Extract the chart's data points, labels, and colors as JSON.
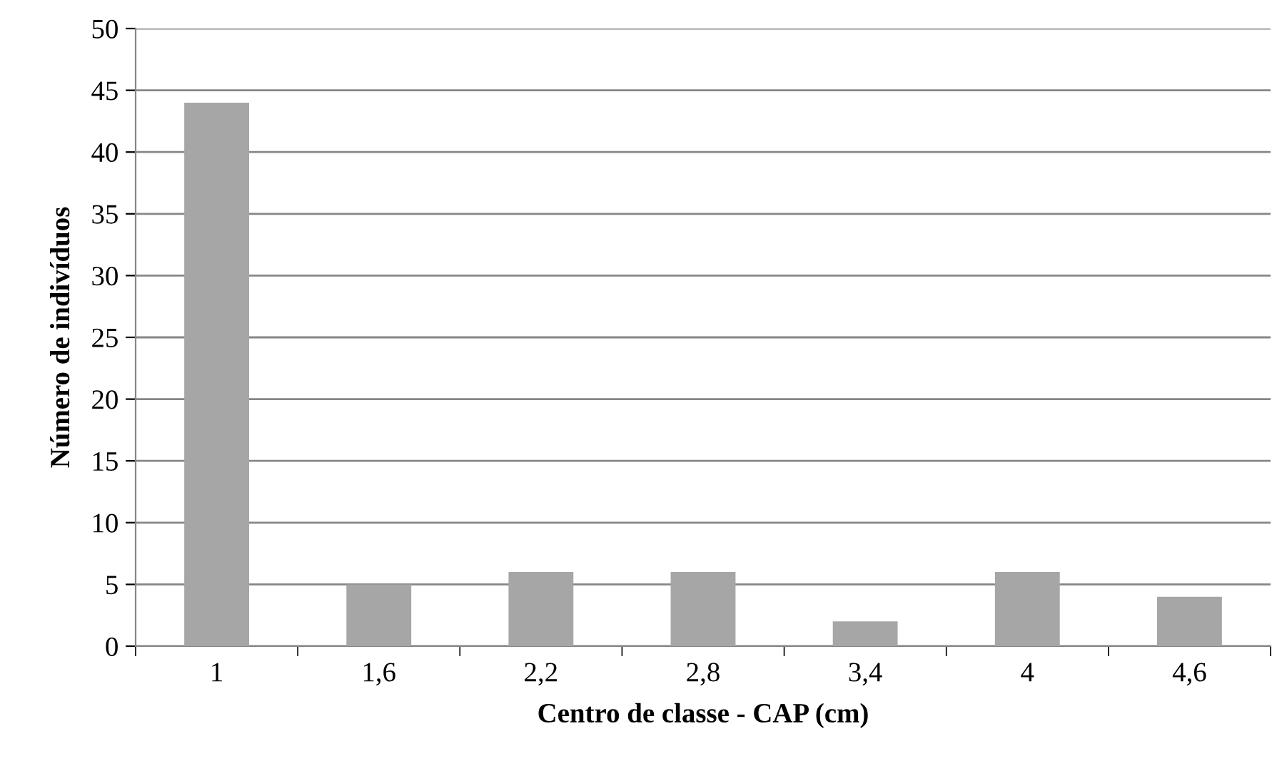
{
  "chart_data": {
    "type": "bar",
    "xlabel": "Centro de classe - CAP (cm)",
    "ylabel": "Número de indivíduos",
    "categories": [
      "1",
      "1,6",
      "2,2",
      "2,8",
      "3,4",
      "4",
      "4,6"
    ],
    "values": [
      44,
      5,
      6,
      6,
      2,
      6,
      4
    ],
    "color": "#a6a6a6",
    "ylim": [
      0,
      50
    ],
    "yticks": [
      0,
      5,
      10,
      15,
      20,
      25,
      30,
      35,
      40,
      45,
      50
    ],
    "grid": "y",
    "legend": false
  }
}
